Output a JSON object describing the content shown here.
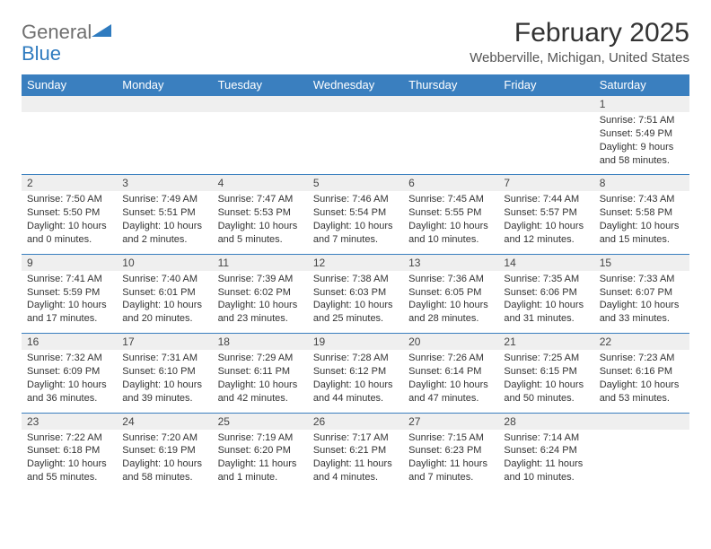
{
  "logo": {
    "text1": "General",
    "text2": "Blue"
  },
  "title": "February 2025",
  "location": "Webberville, Michigan, United States",
  "headerColor": "#3a7fbf",
  "dayHeaders": [
    "Sunday",
    "Monday",
    "Tuesday",
    "Wednesday",
    "Thursday",
    "Friday",
    "Saturday"
  ],
  "weeks": [
    [
      {
        "num": "",
        "sunrise": "",
        "sunset": "",
        "daylight": ""
      },
      {
        "num": "",
        "sunrise": "",
        "sunset": "",
        "daylight": ""
      },
      {
        "num": "",
        "sunrise": "",
        "sunset": "",
        "daylight": ""
      },
      {
        "num": "",
        "sunrise": "",
        "sunset": "",
        "daylight": ""
      },
      {
        "num": "",
        "sunrise": "",
        "sunset": "",
        "daylight": ""
      },
      {
        "num": "",
        "sunrise": "",
        "sunset": "",
        "daylight": ""
      },
      {
        "num": "1",
        "sunrise": "Sunrise: 7:51 AM",
        "sunset": "Sunset: 5:49 PM",
        "daylight": "Daylight: 9 hours and 58 minutes."
      }
    ],
    [
      {
        "num": "2",
        "sunrise": "Sunrise: 7:50 AM",
        "sunset": "Sunset: 5:50 PM",
        "daylight": "Daylight: 10 hours and 0 minutes."
      },
      {
        "num": "3",
        "sunrise": "Sunrise: 7:49 AM",
        "sunset": "Sunset: 5:51 PM",
        "daylight": "Daylight: 10 hours and 2 minutes."
      },
      {
        "num": "4",
        "sunrise": "Sunrise: 7:47 AM",
        "sunset": "Sunset: 5:53 PM",
        "daylight": "Daylight: 10 hours and 5 minutes."
      },
      {
        "num": "5",
        "sunrise": "Sunrise: 7:46 AM",
        "sunset": "Sunset: 5:54 PM",
        "daylight": "Daylight: 10 hours and 7 minutes."
      },
      {
        "num": "6",
        "sunrise": "Sunrise: 7:45 AM",
        "sunset": "Sunset: 5:55 PM",
        "daylight": "Daylight: 10 hours and 10 minutes."
      },
      {
        "num": "7",
        "sunrise": "Sunrise: 7:44 AM",
        "sunset": "Sunset: 5:57 PM",
        "daylight": "Daylight: 10 hours and 12 minutes."
      },
      {
        "num": "8",
        "sunrise": "Sunrise: 7:43 AM",
        "sunset": "Sunset: 5:58 PM",
        "daylight": "Daylight: 10 hours and 15 minutes."
      }
    ],
    [
      {
        "num": "9",
        "sunrise": "Sunrise: 7:41 AM",
        "sunset": "Sunset: 5:59 PM",
        "daylight": "Daylight: 10 hours and 17 minutes."
      },
      {
        "num": "10",
        "sunrise": "Sunrise: 7:40 AM",
        "sunset": "Sunset: 6:01 PM",
        "daylight": "Daylight: 10 hours and 20 minutes."
      },
      {
        "num": "11",
        "sunrise": "Sunrise: 7:39 AM",
        "sunset": "Sunset: 6:02 PM",
        "daylight": "Daylight: 10 hours and 23 minutes."
      },
      {
        "num": "12",
        "sunrise": "Sunrise: 7:38 AM",
        "sunset": "Sunset: 6:03 PM",
        "daylight": "Daylight: 10 hours and 25 minutes."
      },
      {
        "num": "13",
        "sunrise": "Sunrise: 7:36 AM",
        "sunset": "Sunset: 6:05 PM",
        "daylight": "Daylight: 10 hours and 28 minutes."
      },
      {
        "num": "14",
        "sunrise": "Sunrise: 7:35 AM",
        "sunset": "Sunset: 6:06 PM",
        "daylight": "Daylight: 10 hours and 31 minutes."
      },
      {
        "num": "15",
        "sunrise": "Sunrise: 7:33 AM",
        "sunset": "Sunset: 6:07 PM",
        "daylight": "Daylight: 10 hours and 33 minutes."
      }
    ],
    [
      {
        "num": "16",
        "sunrise": "Sunrise: 7:32 AM",
        "sunset": "Sunset: 6:09 PM",
        "daylight": "Daylight: 10 hours and 36 minutes."
      },
      {
        "num": "17",
        "sunrise": "Sunrise: 7:31 AM",
        "sunset": "Sunset: 6:10 PM",
        "daylight": "Daylight: 10 hours and 39 minutes."
      },
      {
        "num": "18",
        "sunrise": "Sunrise: 7:29 AM",
        "sunset": "Sunset: 6:11 PM",
        "daylight": "Daylight: 10 hours and 42 minutes."
      },
      {
        "num": "19",
        "sunrise": "Sunrise: 7:28 AM",
        "sunset": "Sunset: 6:12 PM",
        "daylight": "Daylight: 10 hours and 44 minutes."
      },
      {
        "num": "20",
        "sunrise": "Sunrise: 7:26 AM",
        "sunset": "Sunset: 6:14 PM",
        "daylight": "Daylight: 10 hours and 47 minutes."
      },
      {
        "num": "21",
        "sunrise": "Sunrise: 7:25 AM",
        "sunset": "Sunset: 6:15 PM",
        "daylight": "Daylight: 10 hours and 50 minutes."
      },
      {
        "num": "22",
        "sunrise": "Sunrise: 7:23 AM",
        "sunset": "Sunset: 6:16 PM",
        "daylight": "Daylight: 10 hours and 53 minutes."
      }
    ],
    [
      {
        "num": "23",
        "sunrise": "Sunrise: 7:22 AM",
        "sunset": "Sunset: 6:18 PM",
        "daylight": "Daylight: 10 hours and 55 minutes."
      },
      {
        "num": "24",
        "sunrise": "Sunrise: 7:20 AM",
        "sunset": "Sunset: 6:19 PM",
        "daylight": "Daylight: 10 hours and 58 minutes."
      },
      {
        "num": "25",
        "sunrise": "Sunrise: 7:19 AM",
        "sunset": "Sunset: 6:20 PM",
        "daylight": "Daylight: 11 hours and 1 minute."
      },
      {
        "num": "26",
        "sunrise": "Sunrise: 7:17 AM",
        "sunset": "Sunset: 6:21 PM",
        "daylight": "Daylight: 11 hours and 4 minutes."
      },
      {
        "num": "27",
        "sunrise": "Sunrise: 7:15 AM",
        "sunset": "Sunset: 6:23 PM",
        "daylight": "Daylight: 11 hours and 7 minutes."
      },
      {
        "num": "28",
        "sunrise": "Sunrise: 7:14 AM",
        "sunset": "Sunset: 6:24 PM",
        "daylight": "Daylight: 11 hours and 10 minutes."
      },
      {
        "num": "",
        "sunrise": "",
        "sunset": "",
        "daylight": ""
      }
    ]
  ]
}
